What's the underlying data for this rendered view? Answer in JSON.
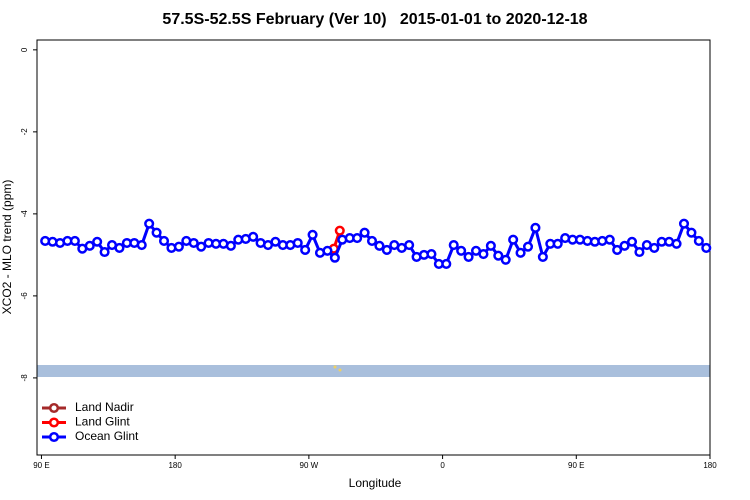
{
  "chart_data": {
    "type": "line",
    "title": "57.5S-52.5S February (Ver 10)   2015-01-01 to 2020-12-18",
    "x_label": "Longitude",
    "y_label": "XCO2 - MLO trend (ppm)",
    "xlim": [
      87,
      540
    ],
    "ylim": [
      -9.88,
      0.24
    ],
    "xticks": [
      {
        "value": 90,
        "label": "90 E"
      },
      180,
      {
        "value": 270,
        "label": "90 W"
      },
      {
        "value": 360,
        "label": "0"
      },
      {
        "value": 450,
        "label": "90 E"
      },
      {
        "value": 540,
        "label": "180"
      }
    ],
    "yticks": [
      0,
      -2,
      -4,
      -6,
      -8
    ],
    "legend": "bottom-left",
    "series": [
      {
        "name": "Land Nadir",
        "color": "#a52a2a",
        "x": [],
        "values": []
      },
      {
        "name": "Land Glint",
        "color": "#ff0000",
        "x": [
          286.8,
          290.8
        ],
        "values": [
          -4.85,
          -4.41
        ]
      },
      {
        "name": "Ocean Glint",
        "color": "#0000ff",
        "x": [
          92.5,
          97.5,
          102.5,
          107.5,
          112.5,
          117.5,
          122.5,
          127.5,
          132.5,
          137.5,
          142.5,
          147.5,
          152.5,
          157.5,
          162.5,
          167.5,
          172.5,
          177.5,
          182.5,
          187.5,
          192.5,
          197.5,
          202.5,
          207.5,
          212.5,
          217.5,
          222.5,
          227.5,
          232.5,
          237.5,
          242.5,
          247.5,
          252.5,
          257.5,
          262.5,
          267.5,
          272.5,
          277.5,
          282.5,
          287.5,
          292.5,
          297.5,
          302.5,
          307.5,
          312.5,
          317.5,
          322.5,
          327.5,
          332.5,
          337.5,
          342.5,
          347.5,
          352.5,
          357.5,
          362.5,
          367.5,
          372.5,
          377.5,
          382.5,
          387.5,
          392.5,
          397.5,
          402.5,
          407.5,
          412.5,
          417.5,
          422.5,
          427.5,
          432.5,
          437.5,
          442.5,
          447.5,
          452.5,
          457.5,
          462.5,
          467.5,
          472.5,
          477.5,
          482.5,
          487.5,
          492.5,
          497.5,
          502.5,
          507.5,
          512.5,
          517.5,
          522.5,
          527.5,
          532.5,
          537.5
        ],
        "values": [
          -4.66,
          -4.68,
          -4.71,
          -4.66,
          -4.66,
          -4.85,
          -4.78,
          -4.68,
          -4.93,
          -4.76,
          -4.83,
          -4.71,
          -4.71,
          -4.76,
          -4.24,
          -4.46,
          -4.66,
          -4.83,
          -4.8,
          -4.66,
          -4.71,
          -4.8,
          -4.71,
          -4.73,
          -4.73,
          -4.78,
          -4.63,
          -4.61,
          -4.56,
          -4.71,
          -4.76,
          -4.68,
          -4.76,
          -4.76,
          -4.71,
          -4.88,
          -4.51,
          -4.95,
          -4.9,
          -5.07,
          -4.63,
          -4.59,
          -4.59,
          -4.46,
          -4.66,
          -4.78,
          -4.88,
          -4.76,
          -4.83,
          -4.76,
          -5.05,
          -5.0,
          -4.98,
          -5.22,
          -5.22,
          -4.76,
          -4.9,
          -5.05,
          -4.9,
          -4.98,
          -4.78,
          -5.02,
          -5.12,
          -4.63,
          -4.95,
          -4.8,
          -4.34,
          -5.05,
          -4.73,
          -4.73,
          -4.59,
          -4.63,
          -4.63,
          -4.66,
          -4.68,
          -4.66,
          -4.63,
          -4.88,
          -4.78,
          -4.68,
          -4.93,
          -4.76,
          -4.83,
          -4.68,
          -4.68,
          -4.73,
          -4.24,
          -4.46,
          -4.66,
          -4.83
        ]
      }
    ]
  }
}
